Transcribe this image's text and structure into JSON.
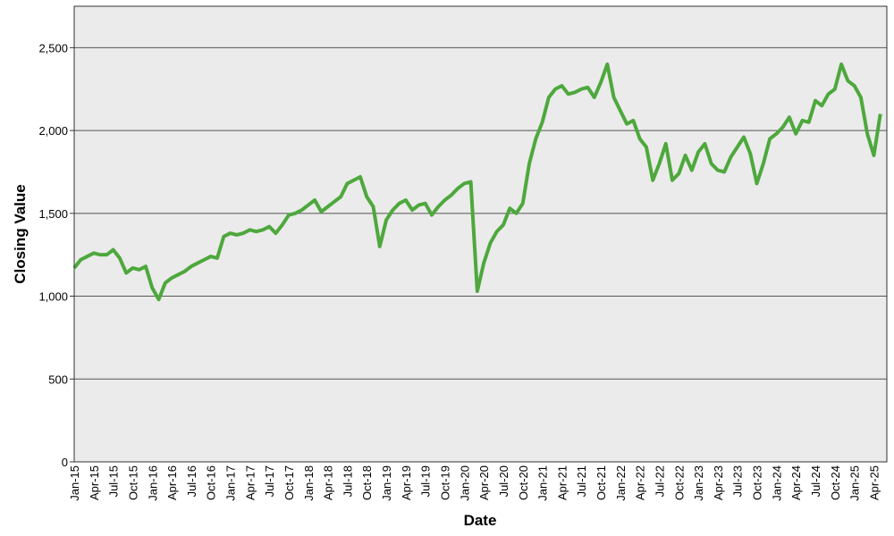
{
  "chart_data": {
    "type": "line",
    "x_label": "Date",
    "y_label": "Closing Value",
    "categories": [
      "Jan-15",
      null,
      null,
      "Apr-15",
      null,
      null,
      "Jul-15",
      null,
      null,
      "Oct-15",
      null,
      null,
      "Jan-16",
      null,
      null,
      "Apr-16",
      null,
      null,
      "Jul-16",
      null,
      null,
      "Oct-16",
      null,
      null,
      "Jan-17",
      null,
      null,
      "Apr-17",
      null,
      null,
      "Jul-17",
      null,
      null,
      "Oct-17",
      null,
      null,
      "Jan-18",
      null,
      null,
      "Apr-18",
      null,
      null,
      "Jul-18",
      null,
      null,
      "Oct-18",
      null,
      null,
      "Jan-19",
      null,
      null,
      "Apr-19",
      null,
      null,
      "Jul-19",
      null,
      null,
      "Oct-19",
      null,
      null,
      "Jan-20",
      null,
      null,
      "Apr-20",
      null,
      null,
      "Jul-20",
      null,
      null,
      "Oct-20",
      null,
      null,
      "Jan-21",
      null,
      null,
      "Apr-21",
      null,
      null,
      "Jul-21",
      null,
      null,
      "Oct-21",
      null,
      null,
      "Jan-22",
      null,
      null,
      "Apr-22",
      null,
      null,
      "Jul-22",
      null,
      null,
      "Oct-22",
      null,
      null,
      "Jan-23",
      null,
      null,
      "Apr-23",
      null,
      null,
      "Jul-23",
      null,
      null,
      "Oct-23",
      null,
      null,
      "Jan-24",
      null,
      null,
      "Apr-24",
      null,
      null,
      "Jul-24",
      null,
      null,
      "Oct-24",
      null,
      null,
      "Jan-25",
      null,
      null,
      "Apr-25",
      null
    ],
    "values": [
      1170,
      1220,
      1240,
      1260,
      1250,
      1250,
      1280,
      1230,
      1140,
      1170,
      1160,
      1180,
      1050,
      980,
      1080,
      1110,
      1130,
      1150,
      1180,
      1200,
      1220,
      1240,
      1230,
      1360,
      1380,
      1370,
      1380,
      1400,
      1390,
      1400,
      1420,
      1380,
      1430,
      1490,
      1500,
      1520,
      1550,
      1580,
      1510,
      1540,
      1570,
      1600,
      1680,
      1700,
      1720,
      1600,
      1540,
      1300,
      1460,
      1520,
      1560,
      1580,
      1520,
      1550,
      1560,
      1490,
      1540,
      1580,
      1610,
      1650,
      1680,
      1690,
      1030,
      1200,
      1320,
      1390,
      1430,
      1530,
      1500,
      1560,
      1800,
      1950,
      2050,
      2200,
      2250,
      2270,
      2220,
      2230,
      2250,
      2260,
      2200,
      2290,
      2400,
      2200,
      2120,
      2040,
      2060,
      1950,
      1900,
      1700,
      1800,
      1920,
      1700,
      1740,
      1850,
      1760,
      1870,
      1920,
      1800,
      1760,
      1750,
      1840,
      1900,
      1960,
      1860,
      1680,
      1800,
      1950,
      1980,
      2020,
      2080,
      1980,
      2060,
      2050,
      2180,
      2150,
      2220,
      2250,
      2400,
      2300,
      2270,
      2200,
      1980,
      1850,
      2100
    ],
    "color": "#4ea83d",
    "ylim": [
      0,
      2750
    ],
    "yticks": [
      0,
      500,
      {
        "value": 1000,
        "label": "1,000"
      },
      {
        "value": 1500,
        "label": "1,500"
      },
      {
        "value": 2000,
        "label": "2,000"
      },
      {
        "value": 2500,
        "label": "2,500"
      }
    ],
    "grid": true
  }
}
